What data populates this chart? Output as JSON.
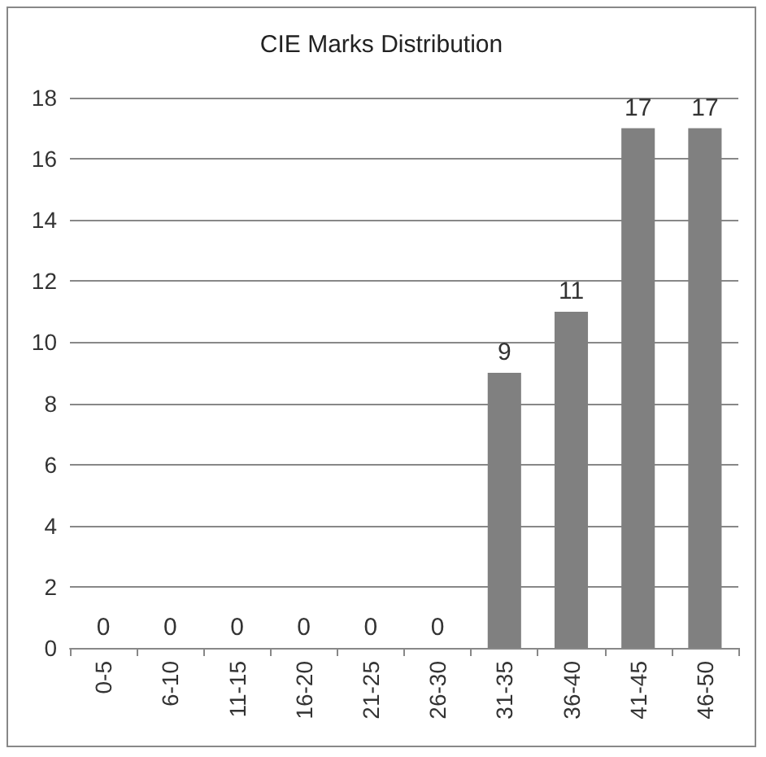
{
  "chart_data": {
    "type": "bar",
    "title": "CIE Marks Distribution",
    "categories": [
      "0-5",
      "6-10",
      "11-15",
      "16-20",
      "21-25",
      "26-30",
      "31-35",
      "36-40",
      "41-45",
      "46-50"
    ],
    "values": [
      0,
      0,
      0,
      0,
      0,
      0,
      9,
      11,
      17,
      17
    ],
    "color": "#808080",
    "ylim": [
      0,
      18
    ],
    "yticks": [
      0,
      2,
      4,
      6,
      8,
      10,
      12,
      14,
      16,
      18
    ],
    "grid": "y",
    "data_labels": true
  }
}
